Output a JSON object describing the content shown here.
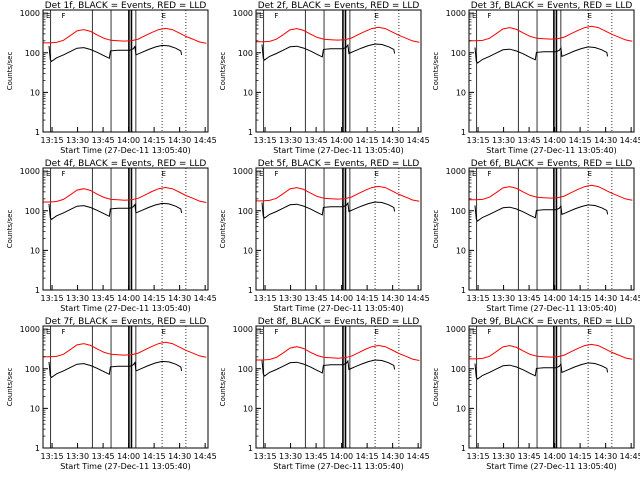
{
  "chart_data": {
    "type": "line",
    "time_axis": {
      "unit": "minutes since 13:05:40",
      "range": [
        4,
        101
      ],
      "ticks": [
        {
          "label": "13:15",
          "value": 9.33
        },
        {
          "label": "13:30",
          "value": 24.33
        },
        {
          "label": "13:45",
          "value": 39.33
        },
        {
          "label": "14:00",
          "value": 54.33
        },
        {
          "label": "14:15",
          "value": 69.33
        },
        {
          "label": "14:30",
          "value": 84.33
        },
        {
          "label": "14:45",
          "value": 99.33
        }
      ],
      "xlabel": "Start Time (27-Dec-11 13:05:40)"
    },
    "y_axis": {
      "label": "Counts/sec",
      "scale": "log",
      "range": [
        1,
        1200
      ],
      "ticks": [
        {
          "label": "1",
          "value": 1
        },
        {
          "label": "10",
          "value": 10
        },
        {
          "label": "100",
          "value": 100
        },
        {
          "label": "1000",
          "value": 1000
        }
      ]
    },
    "panels": [
      {
        "title": "Det 1f, BLACK = Events, RED = LLD",
        "variant": 1
      },
      {
        "title": "Det 2f, BLACK = Events, RED = LLD",
        "variant": 2
      },
      {
        "title": "Det 3f, BLACK = Events, RED = LLD",
        "variant": 3
      },
      {
        "title": "Det 4f, BLACK = Events, RED = LLD",
        "variant": 4
      },
      {
        "title": "Det 5f, BLACK = Events, RED = LLD",
        "variant": 5
      },
      {
        "title": "Det 6f, BLACK = Events, RED = LLD",
        "variant": 6
      },
      {
        "title": "Det 7f, BLACK = Events, RED = LLD",
        "variant": 7
      },
      {
        "title": "Det 8f, BLACK = Events, RED = LLD",
        "variant": 8
      },
      {
        "title": "Det 9f, BLACK = Events, RED = LLD",
        "variant": 9
      }
    ],
    "series": [
      {
        "name": "LLD",
        "color": "#ff0000",
        "points": [
          [
            4,
            185
          ],
          [
            8,
            185
          ],
          [
            12,
            190
          ],
          [
            16,
            215
          ],
          [
            20,
            280
          ],
          [
            24,
            370
          ],
          [
            28,
            400
          ],
          [
            32,
            360
          ],
          [
            36,
            290
          ],
          [
            40,
            240
          ],
          [
            44,
            215
          ],
          [
            48,
            210
          ],
          [
            52,
            205
          ],
          [
            56,
            210
          ],
          [
            60,
            230
          ],
          [
            64,
            280
          ],
          [
            68,
            340
          ],
          [
            72,
            400
          ],
          [
            76,
            430
          ],
          [
            80,
            400
          ],
          [
            84,
            330
          ],
          [
            88,
            270
          ],
          [
            92,
            230
          ],
          [
            96,
            195
          ],
          [
            100,
            180
          ]
        ]
      },
      {
        "name": "Events",
        "color": "#000000",
        "points": [
          [
            7.5,
            160
          ],
          [
            8.3,
            72
          ],
          [
            9,
            65
          ],
          [
            12,
            80
          ],
          [
            16,
            95
          ],
          [
            20,
            115
          ],
          [
            24,
            140
          ],
          [
            28,
            145
          ],
          [
            32,
            130
          ],
          [
            36,
            110
          ],
          [
            40,
            90
          ],
          [
            43,
            78
          ],
          [
            43.6,
            120
          ],
          [
            48,
            125
          ],
          [
            52,
            125
          ],
          [
            55,
            125
          ],
          [
            57,
            135
          ],
          [
            58,
            155
          ],
          [
            58.6,
            95
          ],
          [
            62,
            110
          ],
          [
            66,
            130
          ],
          [
            70,
            150
          ],
          [
            74,
            165
          ],
          [
            78,
            160
          ],
          [
            82,
            140
          ],
          [
            85,
            120
          ],
          [
            85.5,
            95
          ]
        ]
      }
    ],
    "markers": [
      {
        "label": "F",
        "time": 16
      },
      {
        "label": "E",
        "time": 75
      }
    ],
    "solid_vlines": [
      8.5,
      33,
      44,
      54.5,
      56,
      58.6
    ],
    "dotted_vlines": [
      74,
      88
    ],
    "annotations": [
      "E",
      "F",
      "E",
      "F",
      "E"
    ]
  }
}
